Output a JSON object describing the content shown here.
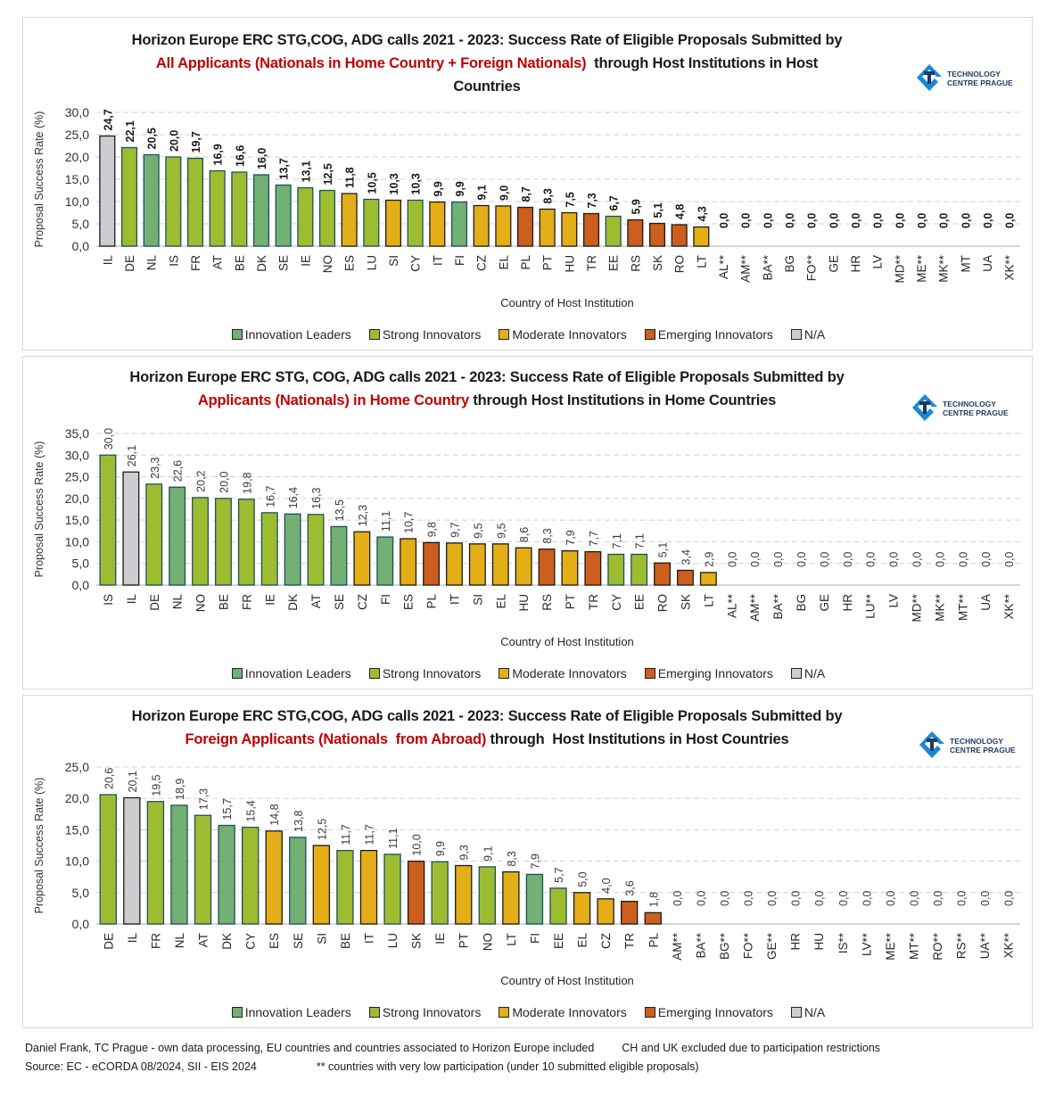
{
  "colors": {
    "innovation_leaders": "#72b073",
    "strong_innovators": "#9dbd31",
    "moderate_innovators": "#e3ae17",
    "emerging_innovators": "#cc5e1e",
    "na": "#cdcdd1",
    "title_red": "#c00000"
  },
  "logo": {
    "line1": "TECHNOLOGY",
    "line2": "CENTRE PRAGUE"
  },
  "legend": [
    {
      "key": "innovation_leaders",
      "label": "Innovation Leaders"
    },
    {
      "key": "strong_innovators",
      "label": "Strong Innovators"
    },
    {
      "key": "moderate_innovators",
      "label": "Moderate Innovators"
    },
    {
      "key": "emerging_innovators",
      "label": "Emerging Innovators"
    },
    {
      "key": "na",
      "label": "N/A"
    }
  ],
  "footer": {
    "line1a": "Daniel Frank, TC Prague - own data processing, EU countries and countries associated to Horizon Europe included",
    "line1b": "CH and UK excluded due to participation restrictions",
    "line2a": "Source: EC - eCORDA 08/2024, SII - EIS 2024",
    "line2b": "** countries with very low participation (under 10 submitted eligible proposals)"
  },
  "chart_data": [
    {
      "type": "bar",
      "title_line1": "Horizon Europe ERC STG,COG, ADG calls 2021 - 2023: Success Rate of Eligible Proposals Submitted by",
      "title_red": "All Applicants (Nationals in Home Country + Foreign Nationals)",
      "title_line2_rest": "  through Host Institutions in Host",
      "title_line3": "Countries",
      "xlabel": "Country of Host Institution",
      "ylabel": "Proposal Success Rate (%)",
      "ylim": [
        0,
        30
      ],
      "yticks": [
        "0,0",
        "5,0",
        "10,0",
        "15,0",
        "20,0",
        "25,0",
        "30,0"
      ],
      "grid": true,
      "legend_position": "bottom",
      "bold_labels": true,
      "categories": [
        "IL",
        "DE",
        "NL",
        "IS",
        "FR",
        "AT",
        "BE",
        "DK",
        "SE",
        "IE",
        "NO",
        "ES",
        "LU",
        "SI",
        "CY",
        "IT",
        "FI",
        "CZ",
        "EL",
        "PL",
        "PT",
        "HU",
        "TR",
        "EE",
        "RS",
        "SK",
        "RO",
        "LT",
        "AL**",
        "AM**",
        "BA**",
        "BG",
        "FO**",
        "GE",
        "HR",
        "LV",
        "MD**",
        "ME**",
        "MK**",
        "MT",
        "UA",
        "XK**"
      ],
      "values": [
        24.7,
        22.1,
        20.5,
        20.0,
        19.7,
        16.9,
        16.6,
        16.0,
        13.7,
        13.1,
        12.5,
        11.8,
        10.5,
        10.3,
        10.3,
        9.9,
        9.9,
        9.1,
        9.0,
        8.7,
        8.3,
        7.5,
        7.3,
        6.7,
        5.9,
        5.1,
        4.8,
        4.3,
        0,
        0,
        0,
        0,
        0,
        0,
        0,
        0,
        0,
        0,
        0,
        0,
        0,
        0
      ],
      "labels": [
        "24,7",
        "22,1",
        "20,5",
        "20,0",
        "19,7",
        "16,9",
        "16,6",
        "16,0",
        "13,7",
        "13,1",
        "12,5",
        "11,8",
        "10,5",
        "10,3",
        "10,3",
        "9,9",
        "9,9",
        "9,1",
        "9,0",
        "8,7",
        "8,3",
        "7,5",
        "7,3",
        "6,7",
        "5,9",
        "5,1",
        "4,8",
        "4,3",
        "0,0",
        "0,0",
        "0,0",
        "0,0",
        "0,0",
        "0,0",
        "0,0",
        "0,0",
        "0,0",
        "0,0",
        "0,0",
        "0,0",
        "0,0",
        "0,0"
      ],
      "groups": [
        "na",
        "strong_innovators",
        "innovation_leaders",
        "strong_innovators",
        "strong_innovators",
        "strong_innovators",
        "strong_innovators",
        "innovation_leaders",
        "innovation_leaders",
        "strong_innovators",
        "strong_innovators",
        "moderate_innovators",
        "strong_innovators",
        "moderate_innovators",
        "strong_innovators",
        "moderate_innovators",
        "innovation_leaders",
        "moderate_innovators",
        "moderate_innovators",
        "emerging_innovators",
        "moderate_innovators",
        "moderate_innovators",
        "emerging_innovators",
        "strong_innovators",
        "emerging_innovators",
        "emerging_innovators",
        "emerging_innovators",
        "moderate_innovators",
        "na",
        "na",
        "na",
        "na",
        "na",
        "na",
        "na",
        "na",
        "na",
        "na",
        "na",
        "na",
        "na",
        "na"
      ]
    },
    {
      "type": "bar",
      "title_line1": "Horizon Europe ERC STG, COG, ADG calls 2021 - 2023: Success Rate of Eligible Proposals Submitted by",
      "title_red": "Applicants (Nationals) in Home Country",
      "title_line2_rest": " through Host Institutions in Home Countries",
      "title_line3": "",
      "xlabel": "Country of Host Institution",
      "ylabel": "Proposal Success Rate (%)",
      "ylim": [
        0,
        35
      ],
      "yticks": [
        "0,0",
        "5,0",
        "10,0",
        "15,0",
        "20,0",
        "25,0",
        "30,0",
        "35,0"
      ],
      "grid": true,
      "legend_position": "bottom",
      "bold_labels": false,
      "categories": [
        "IS",
        "IL",
        "DE",
        "NL",
        "NO",
        "BE",
        "FR",
        "IE",
        "DK",
        "AT",
        "SE",
        "CZ",
        "FI",
        "ES",
        "PL",
        "IT",
        "SI",
        "EL",
        "HU",
        "RS",
        "PT",
        "TR",
        "CY",
        "EE",
        "RO",
        "SK",
        "LT",
        "AL**",
        "AM**",
        "BA**",
        "BG",
        "GE",
        "HR",
        "LU**",
        "LV",
        "MD**",
        "MK**",
        "MT**",
        "UA",
        "XK**"
      ],
      "values": [
        30.0,
        26.1,
        23.3,
        22.6,
        20.2,
        20.0,
        19.8,
        16.7,
        16.4,
        16.3,
        13.5,
        12.3,
        11.1,
        10.7,
        9.8,
        9.7,
        9.5,
        9.5,
        8.6,
        8.3,
        7.9,
        7.7,
        7.1,
        7.1,
        5.1,
        3.4,
        2.9,
        0,
        0,
        0,
        0,
        0,
        0,
        0,
        0,
        0,
        0,
        0,
        0,
        0
      ],
      "labels": [
        "30,0",
        "26,1",
        "23,3",
        "22,6",
        "20,2",
        "20,0",
        "19,8",
        "16,7",
        "16,4",
        "16,3",
        "13,5",
        "12,3",
        "11,1",
        "10,7",
        "9,8",
        "9,7",
        "9,5",
        "9,5",
        "8,6",
        "8,3",
        "7,9",
        "7,7",
        "7,1",
        "7,1",
        "5,1",
        "3,4",
        "2,9",
        "0,0",
        "0,0",
        "0,0",
        "0,0",
        "0,0",
        "0,0",
        "0,0",
        "0,0",
        "0,0",
        "0,0",
        "0,0",
        "0,0",
        "0,0"
      ],
      "groups": [
        "strong_innovators",
        "na",
        "strong_innovators",
        "innovation_leaders",
        "strong_innovators",
        "strong_innovators",
        "strong_innovators",
        "strong_innovators",
        "innovation_leaders",
        "strong_innovators",
        "innovation_leaders",
        "moderate_innovators",
        "innovation_leaders",
        "moderate_innovators",
        "emerging_innovators",
        "moderate_innovators",
        "moderate_innovators",
        "moderate_innovators",
        "moderate_innovators",
        "emerging_innovators",
        "moderate_innovators",
        "emerging_innovators",
        "strong_innovators",
        "strong_innovators",
        "emerging_innovators",
        "emerging_innovators",
        "moderate_innovators",
        "na",
        "na",
        "na",
        "na",
        "na",
        "na",
        "na",
        "na",
        "na",
        "na",
        "na",
        "na",
        "na"
      ]
    },
    {
      "type": "bar",
      "title_line1": "Horizon Europe ERC STG,COG, ADG calls 2021 - 2023: Success Rate of Eligible Proposals Submitted by",
      "title_red": "Foreign Applicants (Nationals  from Abroad)",
      "title_line2_rest": " through  Host Institutions in Host Countries",
      "title_line3": "",
      "xlabel": "Country of Host Institution",
      "ylabel": "Proposal Success Rate (%)",
      "ylim": [
        0,
        25
      ],
      "yticks": [
        "0,0",
        "5,0",
        "10,0",
        "15,0",
        "20,0",
        "25,0"
      ],
      "grid": true,
      "legend_position": "bottom",
      "bold_labels": false,
      "categories": [
        "DE",
        "IL",
        "FR",
        "NL",
        "AT",
        "DK",
        "CY",
        "ES",
        "SE",
        "SI",
        "BE",
        "IT",
        "LU",
        "SK",
        "IE",
        "PT",
        "NO",
        "LT",
        "FI",
        "EE",
        "EL",
        "CZ",
        "TR",
        "PL",
        "AM**",
        "BA**",
        "BG**",
        "FO**",
        "GE**",
        "HR",
        "HU",
        "IS**",
        "LV**",
        "ME**",
        "MT**",
        "RO**",
        "RS**",
        "UA**",
        "XK**"
      ],
      "values": [
        20.6,
        20.1,
        19.5,
        18.9,
        17.3,
        15.7,
        15.4,
        14.8,
        13.8,
        12.5,
        11.7,
        11.7,
        11.1,
        10.0,
        9.9,
        9.3,
        9.1,
        8.3,
        7.9,
        5.7,
        5.0,
        4.0,
        3.6,
        1.8,
        0,
        0,
        0,
        0,
        0,
        0,
        0,
        0,
        0,
        0,
        0,
        0,
        0,
        0,
        0
      ],
      "labels": [
        "20,6",
        "20,1",
        "19,5",
        "18,9",
        "17,3",
        "15,7",
        "15,4",
        "14,8",
        "13,8",
        "12,5",
        "11,7",
        "11,7",
        "11,1",
        "10,0",
        "9,9",
        "9,3",
        "9,1",
        "8,3",
        "7,9",
        "5,7",
        "5,0",
        "4,0",
        "3,6",
        "1,8",
        "0,0",
        "0,0",
        "0,0",
        "0,0",
        "0,0",
        "0,0",
        "0,0",
        "0,0",
        "0,0",
        "0,0",
        "0,0",
        "0,0",
        "0,0",
        "0,0",
        "0,0"
      ],
      "groups": [
        "strong_innovators",
        "na",
        "strong_innovators",
        "innovation_leaders",
        "strong_innovators",
        "innovation_leaders",
        "strong_innovators",
        "moderate_innovators",
        "innovation_leaders",
        "moderate_innovators",
        "strong_innovators",
        "moderate_innovators",
        "strong_innovators",
        "emerging_innovators",
        "strong_innovators",
        "moderate_innovators",
        "strong_innovators",
        "moderate_innovators",
        "innovation_leaders",
        "strong_innovators",
        "moderate_innovators",
        "moderate_innovators",
        "emerging_innovators",
        "emerging_innovators",
        "na",
        "na",
        "na",
        "na",
        "na",
        "na",
        "na",
        "na",
        "na",
        "na",
        "na",
        "na",
        "na",
        "na",
        "na"
      ]
    }
  ]
}
